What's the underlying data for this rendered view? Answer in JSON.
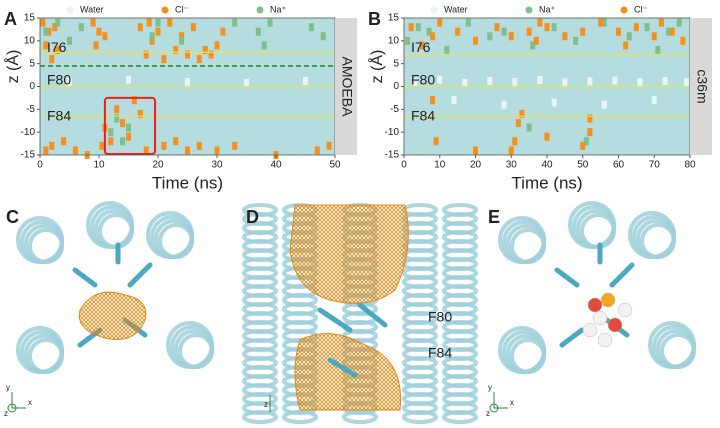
{
  "chart_data": [
    {
      "type": "scatter",
      "panel": "A",
      "side_label": "AMOEBA",
      "xlabel": "Time (ns)",
      "ylabel": "z (Å)",
      "xlim": [
        0,
        50
      ],
      "xticks": [
        0,
        10,
        20,
        30,
        40,
        50
      ],
      "ylim": [
        -15,
        15
      ],
      "yticks": [
        -15,
        -10,
        -5,
        0,
        5,
        10,
        15
      ],
      "plot_background": "#b5dcdf",
      "annotations": [
        "I76",
        "F80",
        "F84"
      ],
      "reference_lines": [
        {
          "value": 7.5,
          "color": "#f2e24a"
        },
        {
          "value": 4.5,
          "color": "#2e8b3a",
          "dashed": true
        },
        {
          "value": 0,
          "color": "#f2e24a"
        },
        {
          "value": -6.5,
          "color": "#f2e24a"
        }
      ],
      "highlight": {
        "x": [
          11,
          19.5
        ],
        "y": [
          -15,
          -2.5
        ],
        "color": "#e8221b"
      },
      "series": [
        {
          "name": "Water",
          "color": "#e8f6f6",
          "x": [
            5,
            15,
            25,
            35,
            45
          ],
          "y": [
            1,
            1.5,
            1,
            0.8,
            1.2
          ]
        },
        {
          "name": "Cl⁻",
          "color": "#f5901e",
          "x": [
            0.5,
            1,
            1.5,
            2,
            2.5,
            3,
            9,
            9.5,
            10,
            11,
            17,
            18,
            18.5,
            19,
            20,
            21,
            22,
            23,
            24,
            25,
            26,
            27,
            28,
            29,
            30,
            31,
            10.5,
            11,
            12,
            13,
            14,
            15,
            16,
            17,
            18,
            1,
            2,
            4,
            6,
            8,
            21,
            23,
            25,
            27,
            30,
            33,
            40,
            47,
            49
          ],
          "y": [
            14,
            9,
            12,
            6,
            13,
            8,
            14,
            9,
            12,
            11,
            13,
            7,
            14,
            10,
            12,
            6,
            14,
            8,
            11,
            7,
            13,
            6,
            8,
            7,
            9,
            12,
            -13,
            -9,
            -12,
            -5,
            -8,
            -11,
            -3,
            -6,
            -14,
            -14,
            -13,
            -12,
            -14,
            -15,
            -13,
            -12,
            -14,
            -13,
            -14,
            -13,
            -15,
            -14,
            -13
          ]
        },
        {
          "name": "Na⁺",
          "color": "#7fbf8a",
          "x": [
            1,
            3,
            5,
            7,
            12,
            13,
            14,
            15,
            19,
            20,
            24,
            33,
            37,
            38,
            39,
            46,
            48
          ],
          "y": [
            12,
            14,
            10,
            13,
            -10,
            -7,
            -12,
            -9,
            11,
            14,
            10,
            14,
            12,
            9,
            14,
            13,
            11
          ]
        }
      ]
    },
    {
      "type": "scatter",
      "panel": "B",
      "side_label": "c36m",
      "xlabel": "Time (ns)",
      "ylabel": "z (Å)",
      "xlim": [
        0,
        80
      ],
      "xticks": [
        0,
        10,
        20,
        30,
        40,
        50,
        60,
        70,
        80
      ],
      "ylim": [
        -15,
        15
      ],
      "yticks": [
        -15,
        -10,
        -5,
        0,
        5,
        10,
        15
      ],
      "plot_background": "#b5dcdf",
      "annotations": [
        "I76",
        "F80",
        "F84"
      ],
      "reference_lines": [
        {
          "value": 7,
          "color": "#f2e24a"
        },
        {
          "value": 0,
          "color": "#f2e24a"
        },
        {
          "value": -6.5,
          "color": "#f2e24a"
        }
      ],
      "series": [
        {
          "name": "Water",
          "color": "#e8f6f6",
          "x": [
            3,
            10,
            17,
            24,
            31,
            38,
            45,
            52,
            59,
            66,
            73,
            79,
            14,
            28,
            42,
            56,
            70
          ],
          "y": [
            1,
            1.5,
            0.8,
            1.2,
            1,
            1.4,
            0.9,
            1.1,
            1.3,
            1,
            1.2,
            0.9,
            -3,
            -4,
            -3.5,
            -4,
            -3
          ]
        },
        {
          "name": "Na⁺",
          "color": "#7fbf8a",
          "x": [
            1,
            4,
            7,
            12,
            18,
            24,
            28,
            36,
            42,
            48,
            56,
            63,
            68,
            71,
            74,
            77,
            35,
            51
          ],
          "y": [
            10,
            13,
            12,
            8,
            14,
            11,
            12,
            9,
            13,
            10,
            14,
            11,
            13,
            8,
            12,
            14,
            -9,
            -12
          ]
        },
        {
          "name": "Cl⁻",
          "color": "#f5901e",
          "x": [
            2,
            5,
            8,
            10,
            15,
            20,
            26,
            30,
            31,
            32,
            35,
            37,
            38,
            40,
            45,
            50,
            52,
            55,
            60,
            62,
            65,
            70,
            72,
            75,
            78,
            30,
            33,
            50,
            52,
            8,
            9,
            20,
            40
          ],
          "y": [
            13,
            9,
            11,
            14,
            12,
            10,
            13,
            11,
            -12,
            -8,
            12,
            10,
            14,
            13,
            11,
            12,
            -10,
            14,
            12,
            9,
            13,
            11,
            14,
            12,
            10,
            -14,
            -6,
            -13,
            -7,
            -3,
            -12,
            -14,
            -11
          ]
        }
      ]
    }
  ],
  "structure_panels": [
    {
      "label": "C",
      "axes": [
        "y",
        "x",
        "z"
      ]
    },
    {
      "label": "D",
      "residues": [
        "F80",
        "F84"
      ],
      "axes": [
        "z"
      ]
    },
    {
      "label": "E",
      "axes": [
        "y",
        "x",
        "z"
      ]
    }
  ]
}
